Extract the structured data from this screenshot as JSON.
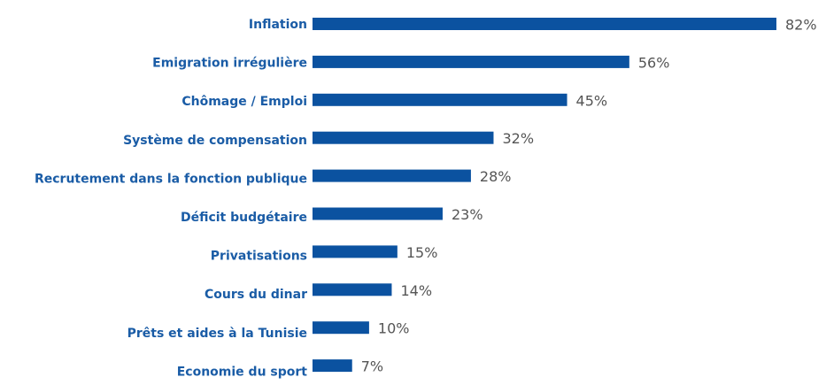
{
  "chart_data": {
    "type": "bar",
    "orientation": "horizontal",
    "categories": [
      "Inflation",
      "Emigration irrégulière",
      "Chômage / Emploi",
      "Système de compensation",
      "Recrutement dans la fonction publique",
      "Déficit budgétaire",
      "Privatisations",
      "Cours du dinar",
      "Prêts et aides à la Tunisie",
      "Economie du sport"
    ],
    "values": [
      82,
      56,
      45,
      32,
      28,
      23,
      15,
      14,
      10,
      7
    ],
    "value_labels": [
      "82%",
      "56%",
      "45%",
      "32%",
      "28%",
      "23%",
      "15%",
      "14%",
      "10%",
      "7%"
    ],
    "color": "#0b52a0"
  }
}
